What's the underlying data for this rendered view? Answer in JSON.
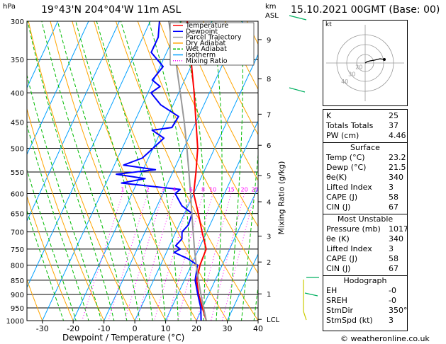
{
  "header": {
    "location": "19°43'N  204°04'W  11m  ASL",
    "datetime": "15.10.2021  00GMT  (Base: 00)",
    "hpa_label": "hPa",
    "km_label": "km",
    "asl_label": "ASL"
  },
  "chart_data": {
    "type": "line",
    "xlabel": "Dewpoint / Temperature (°C)",
    "ylabel_right": "Mixing Ratio (g/kg)",
    "x_ticks": [
      -30,
      -20,
      -10,
      0,
      10,
      20,
      30,
      40
    ],
    "xlim": [
      -35,
      40
    ],
    "p_range": [
      300,
      1000
    ],
    "p_levels": [
      300,
      350,
      400,
      450,
      500,
      550,
      600,
      650,
      700,
      750,
      800,
      850,
      900,
      950,
      1000
    ],
    "km_ticks": [
      {
        "label": "9",
        "p": 323
      },
      {
        "label": "8",
        "p": 378
      },
      {
        "label": "7",
        "p": 436
      },
      {
        "label": "6",
        "p": 494
      },
      {
        "label": "5",
        "p": 558
      },
      {
        "label": "4",
        "p": 620
      },
      {
        "label": "3",
        "p": 712
      },
      {
        "label": "2",
        "p": 790
      },
      {
        "label": "1",
        "p": 898
      },
      {
        "label": "LCL",
        "p": 995
      }
    ],
    "mixing_ratios": [
      "1",
      "2",
      "3",
      "4",
      "6",
      "8",
      "10",
      "15",
      "20",
      "25"
    ],
    "legend": [
      {
        "name": "Temperature",
        "color": "#ff0000"
      },
      {
        "name": "Dewpoint",
        "color": "#0000ff"
      },
      {
        "name": "Parcel Trajectory",
        "color": "#999999"
      },
      {
        "name": "Dry Adiabat",
        "color": "#ffa500"
      },
      {
        "name": "Wet Adiabat",
        "color": "#00bb00"
      },
      {
        "name": "Isotherm",
        "color": "#00a0ff"
      },
      {
        "name": "Mixing Ratio",
        "color": "#ff00ff"
      }
    ],
    "series": [
      {
        "name": "Temperature",
        "color": "#ff0000",
        "points": [
          [
            1000,
            23.2
          ],
          [
            950,
            20.0
          ],
          [
            900,
            16.8
          ],
          [
            850,
            14.0
          ],
          [
            800,
            12.8
          ],
          [
            750,
            12.4
          ],
          [
            700,
            8.5
          ],
          [
            650,
            4.5
          ],
          [
            600,
            0.0
          ],
          [
            550,
            -2.5
          ],
          [
            500,
            -5.5
          ],
          [
            450,
            -10.0
          ],
          [
            400,
            -15.0
          ],
          [
            350,
            -21.0
          ],
          [
            300,
            -28.0
          ]
        ]
      },
      {
        "name": "Dewpoint",
        "color": "#0000ff",
        "points": [
          [
            1000,
            21.5
          ],
          [
            950,
            19.5
          ],
          [
            900,
            16.5
          ],
          [
            850,
            13.5
          ],
          [
            800,
            12.0
          ],
          [
            780,
            8.0
          ],
          [
            760,
            2.5
          ],
          [
            750,
            4.0
          ],
          [
            740,
            2.0
          ],
          [
            720,
            3.0
          ],
          [
            700,
            2.0
          ],
          [
            680,
            3.0
          ],
          [
            650,
            2.5
          ],
          [
            630,
            -2.0
          ],
          [
            600,
            -6.0
          ],
          [
            590,
            -5.0
          ],
          [
            575,
            -25.0
          ],
          [
            565,
            -18.0
          ],
          [
            555,
            -28.0
          ],
          [
            545,
            -16.0
          ],
          [
            535,
            -27.0
          ],
          [
            520,
            -22.0
          ],
          [
            500,
            -20.0
          ],
          [
            480,
            -18.0
          ],
          [
            465,
            -23.0
          ],
          [
            460,
            -17.0
          ],
          [
            440,
            -16.5
          ],
          [
            420,
            -24.0
          ],
          [
            400,
            -29.0
          ],
          [
            390,
            -27.0
          ],
          [
            380,
            -30.5
          ],
          [
            360,
            -29.0
          ],
          [
            340,
            -35.0
          ],
          [
            320,
            -35.0
          ],
          [
            300,
            -37.0
          ]
        ]
      },
      {
        "name": "Parcel Trajectory",
        "color": "#999999",
        "points": [
          [
            1000,
            23.2
          ],
          [
            950,
            20.4
          ],
          [
            900,
            17.5
          ],
          [
            850,
            14.6
          ],
          [
            800,
            11.6
          ],
          [
            750,
            8.6
          ],
          [
            700,
            5.6
          ],
          [
            650,
            2.4
          ],
          [
            600,
            -1.0
          ],
          [
            550,
            -4.8
          ],
          [
            500,
            -9.0
          ],
          [
            450,
            -13.8
          ],
          [
            400,
            -19.5
          ],
          [
            350,
            -26.0
          ],
          [
            300,
            -34.0
          ]
        ]
      }
    ]
  },
  "hodograph": {
    "label": "kt",
    "ring_labels": [
      "40",
      "30",
      "20"
    ]
  },
  "indices": {
    "top": [
      {
        "k": "K",
        "v": "25"
      },
      {
        "k": "Totals Totals",
        "v": "37"
      },
      {
        "k": "PW (cm)",
        "v": "4.46"
      }
    ],
    "surface_title": "Surface",
    "surface": [
      {
        "k": "Temp (°C)",
        "v": "23.2"
      },
      {
        "k": "Dewp (°C)",
        "v": "21.5"
      },
      {
        "k": "θe(K)",
        "v": "340"
      },
      {
        "k": "Lifted Index",
        "v": "3"
      },
      {
        "k": "CAPE (J)",
        "v": "58"
      },
      {
        "k": "CIN (J)",
        "v": "67"
      }
    ],
    "mu_title": "Most Unstable",
    "mu": [
      {
        "k": "Pressure (mb)",
        "v": "1017"
      },
      {
        "k": "θe (K)",
        "v": "340"
      },
      {
        "k": "Lifted Index",
        "v": "3"
      },
      {
        "k": "CAPE (J)",
        "v": "58"
      },
      {
        "k": "CIN (J)",
        "v": "67"
      }
    ],
    "hodo_title": "Hodograph",
    "hodo": [
      {
        "k": "EH",
        "v": "-0"
      },
      {
        "k": "SREH",
        "v": "-0"
      },
      {
        "k": "StmDir",
        "v": "350°"
      },
      {
        "k": "StmSpd (kt)",
        "v": "3"
      }
    ]
  },
  "footer": {
    "copyright": "© weatheronline.co.uk"
  }
}
